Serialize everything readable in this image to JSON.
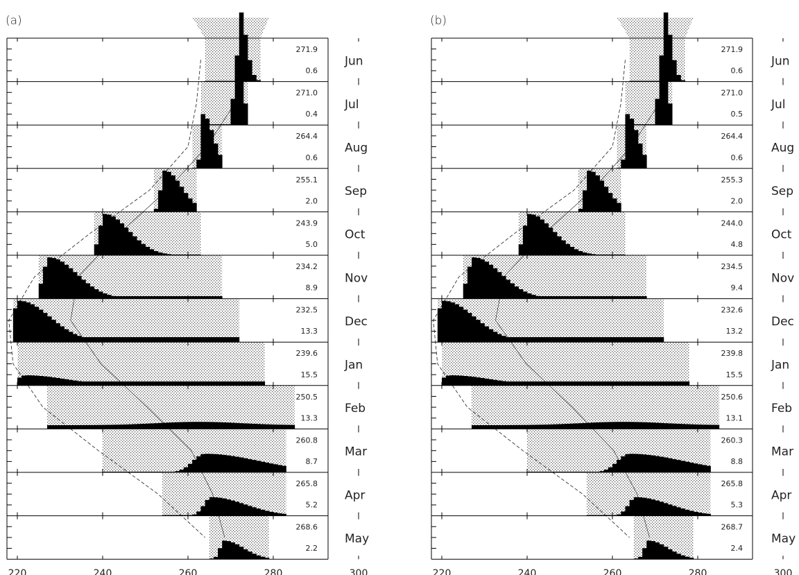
{
  "chart_data": [
    {
      "panel": "(a)",
      "type": "histogram",
      "xlim": [
        210,
        300
      ],
      "xticks": [
        "220",
        "240",
        "260",
        "280",
        "300"
      ],
      "rows": [
        {
          "month": "Jun",
          "mean": "271.9",
          "std": "0.6",
          "lo": 264,
          "hi": 277,
          "peak": 272,
          "sd": 1.0
        },
        {
          "month": "Jul",
          "mean": "271.0",
          "std": "0.4",
          "lo": 263,
          "hi": 274,
          "peak": 271,
          "sd": 1.0
        },
        {
          "month": "Aug",
          "mean": "264.4",
          "std": "0.6",
          "lo": 261,
          "hi": 268,
          "peak": 263.5,
          "sd": 1.5
        },
        {
          "month": "Sep",
          "mean": "255.1",
          "std": "2.0",
          "lo": 252,
          "hi": 262,
          "peak": 254.5,
          "sd": 2.5
        },
        {
          "month": "Oct",
          "mean": "243.9",
          "std": "5.0",
          "lo": 238,
          "hi": 263,
          "peak": 240.5,
          "sd": 3.5
        },
        {
          "month": "Nov",
          "mean": "234.2",
          "std": "8.9",
          "lo": 225,
          "hi": 268,
          "peak": 227.5,
          "sd": 4.0
        },
        {
          "month": "Dec",
          "mean": "232.5",
          "std": "13.3",
          "lo": 219,
          "hi": 272,
          "peak": 220.5,
          "sd": 4.5
        },
        {
          "month": "Jan",
          "mean": "239.6",
          "std": "15.5",
          "lo": 220,
          "hi": 278,
          "peak": 222,
          "sd": 6.0
        },
        {
          "month": "Feb",
          "mean": "250.5",
          "std": "13.3",
          "lo": 227,
          "hi": 285,
          "peak": 261,
          "sd": 14.0
        },
        {
          "month": "Mar",
          "mean": "260.8",
          "std": "8.7",
          "lo": 240,
          "hi": 283,
          "peak": 264,
          "sd": 8.0
        },
        {
          "month": "Apr",
          "mean": "265.8",
          "std": "5.2",
          "lo": 254,
          "hi": 283,
          "peak": 265.5,
          "sd": 5.0
        },
        {
          "month": "May",
          "mean": "268.6",
          "std": "2.2",
          "lo": 265,
          "hi": 279,
          "peak": 268.5,
          "sd": 2.8
        }
      ]
    },
    {
      "panel": "(b)",
      "type": "histogram",
      "xlim": [
        210,
        300
      ],
      "xticks": [
        "220",
        "240",
        "260",
        "280",
        "300"
      ],
      "rows": [
        {
          "month": "Jun",
          "mean": "271.9",
          "std": "0.6",
          "lo": 264,
          "hi": 277,
          "peak": 272,
          "sd": 1.0
        },
        {
          "month": "Jul",
          "mean": "271.0",
          "std": "0.5",
          "lo": 263,
          "hi": 274,
          "peak": 271,
          "sd": 1.0
        },
        {
          "month": "Aug",
          "mean": "264.4",
          "std": "0.6",
          "lo": 261,
          "hi": 268,
          "peak": 263.5,
          "sd": 1.5
        },
        {
          "month": "Sep",
          "mean": "255.3",
          "std": "2.0",
          "lo": 252,
          "hi": 262,
          "peak": 254.5,
          "sd": 2.5
        },
        {
          "month": "Oct",
          "mean": "244.0",
          "std": "4.8",
          "lo": 238,
          "hi": 263,
          "peak": 240.5,
          "sd": 3.5
        },
        {
          "month": "Nov",
          "mean": "234.5",
          "std": "9.4",
          "lo": 225,
          "hi": 268,
          "peak": 227.5,
          "sd": 4.0
        },
        {
          "month": "Dec",
          "mean": "232.6",
          "std": "13.2",
          "lo": 219,
          "hi": 272,
          "peak": 220.5,
          "sd": 4.5
        },
        {
          "month": "Jan",
          "mean": "239.8",
          "std": "15.5",
          "lo": 220,
          "hi": 278,
          "peak": 222,
          "sd": 6.0
        },
        {
          "month": "Feb",
          "mean": "250.6",
          "std": "13.1",
          "lo": 227,
          "hi": 285,
          "peak": 261,
          "sd": 14.0
        },
        {
          "month": "Mar",
          "mean": "260.3",
          "std": "8.8",
          "lo": 240,
          "hi": 283,
          "peak": 264,
          "sd": 8.0
        },
        {
          "month": "Apr",
          "mean": "265.8",
          "std": "5.3",
          "lo": 254,
          "hi": 283,
          "peak": 265.5,
          "sd": 5.0
        },
        {
          "month": "May",
          "mean": "268.7",
          "std": "2.4",
          "lo": 265,
          "hi": 279,
          "peak": 268.5,
          "sd": 2.8
        }
      ]
    }
  ]
}
